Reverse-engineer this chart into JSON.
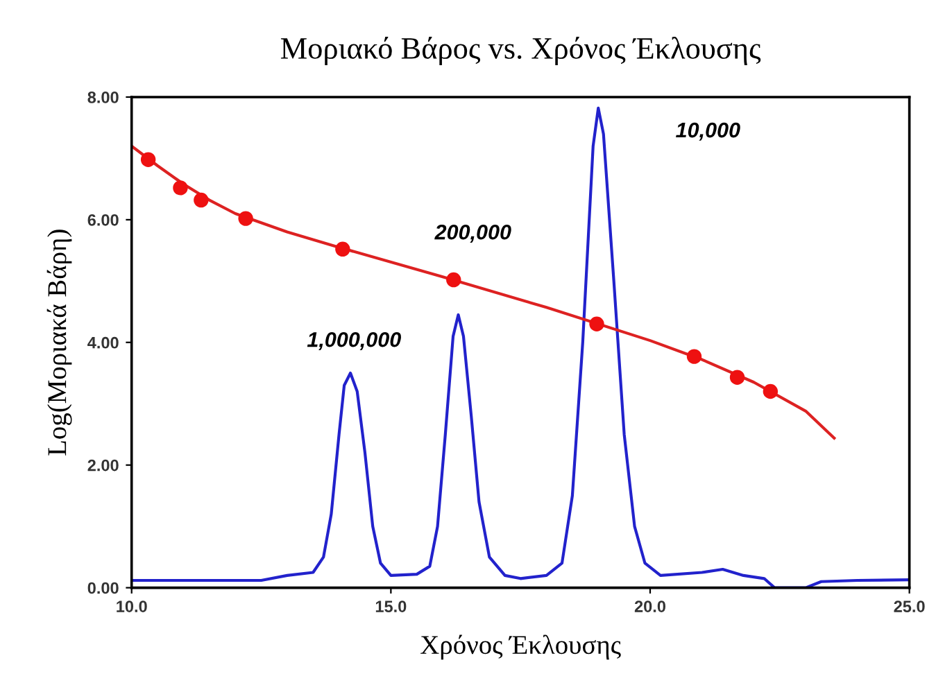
{
  "chart_data": {
    "type": "line",
    "title": "Μοριακό Βάρος vs. Χρόνος Έκλουσης",
    "xlabel": "Χρόνος Έκλουσης",
    "ylabel": "Log(Μοριακά Βάρη)",
    "xlim": [
      10,
      25
    ],
    "xticks": [
      {
        "value": 10,
        "label": "10.0"
      },
      {
        "value": 15,
        "label": "15.0"
      },
      {
        "value": 20,
        "label": "20.0"
      },
      {
        "value": 25,
        "label": "25.0"
      }
    ],
    "ylim": [
      0,
      8
    ],
    "yticks": [
      {
        "value": 0,
        "label": "0.00"
      },
      {
        "value": 2,
        "label": "2.00"
      },
      {
        "value": 4,
        "label": "4.00"
      },
      {
        "value": 6,
        "label": "6.00"
      },
      {
        "value": 8,
        "label": "8.00"
      }
    ],
    "grid": false,
    "series": [
      {
        "color": "#2222cc",
        "marker": "none",
        "x": [
          10,
          12.5,
          13.0,
          13.5,
          13.7,
          13.85,
          14.0,
          14.1,
          14.22,
          14.35,
          14.5,
          14.65,
          14.8,
          15.0,
          15.5,
          15.75,
          15.9,
          16.05,
          16.2,
          16.3,
          16.4,
          16.55,
          16.7,
          16.9,
          17.2,
          17.5,
          18.0,
          18.3,
          18.5,
          18.7,
          18.9,
          19.0,
          19.1,
          19.3,
          19.5,
          19.7,
          19.9,
          20.2,
          21.0,
          21.4,
          21.8,
          22.2,
          22.4,
          23.0,
          23.3,
          24,
          25
        ],
        "values": [
          0.12,
          0.12,
          0.2,
          0.25,
          0.5,
          1.2,
          2.5,
          3.3,
          3.5,
          3.2,
          2.2,
          1.0,
          0.4,
          0.2,
          0.22,
          0.35,
          1.0,
          2.5,
          4.1,
          4.45,
          4.1,
          2.8,
          1.4,
          0.5,
          0.2,
          0.15,
          0.2,
          0.4,
          1.5,
          4.0,
          7.2,
          7.82,
          7.4,
          5.0,
          2.5,
          1.0,
          0.4,
          0.2,
          0.25,
          0.3,
          0.2,
          0.15,
          0.0,
          0.0,
          0.1,
          0.12,
          0.13
        ]
      },
      {
        "color": "#dd2222",
        "marker": "none",
        "x": [
          10,
          10.5,
          11,
          11.5,
          12,
          13,
          14,
          16,
          18,
          20,
          21,
          22,
          23,
          23.55
        ],
        "values": [
          7.2,
          6.88,
          6.58,
          6.32,
          6.1,
          5.8,
          5.55,
          5.07,
          4.57,
          4.03,
          3.72,
          3.35,
          2.88,
          2.44
        ]
      },
      {
        "type": "scatter",
        "color": "#ee1111",
        "marker": "circle",
        "x": [
          10.32,
          10.94,
          11.34,
          12.2,
          14.07,
          16.21,
          18.97,
          20.85,
          21.68,
          22.32
        ],
        "values": [
          6.98,
          6.52,
          6.32,
          6.02,
          5.52,
          5.02,
          4.3,
          3.77,
          3.43,
          3.2
        ]
      }
    ],
    "annotations": [
      "1,000,000",
      "200,000",
      "10,000"
    ]
  }
}
